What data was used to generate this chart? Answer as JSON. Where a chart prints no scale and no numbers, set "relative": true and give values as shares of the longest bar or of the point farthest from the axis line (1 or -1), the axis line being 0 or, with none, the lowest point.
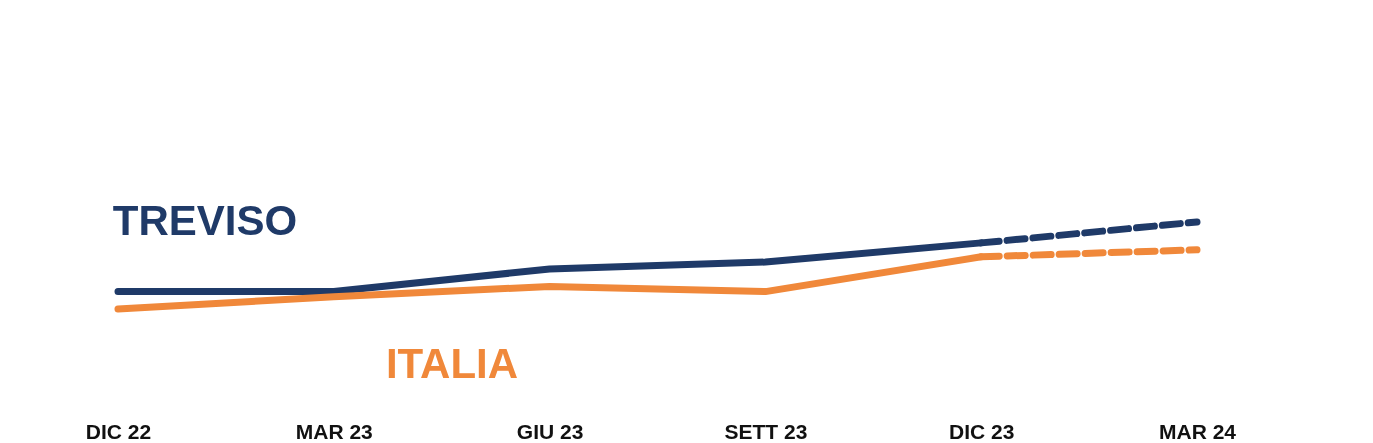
{
  "chart_data": {
    "type": "line",
    "relative": true,
    "legend": false,
    "categories": [
      "DIC 22",
      "MAR 23",
      "GIU 23",
      "SETT 23",
      "DIC 23",
      "MAR 24"
    ],
    "series": [
      {
        "name": "TREVISO",
        "color": "#1f3a68",
        "line_style": "solid",
        "values": [
          0.2,
          0.2,
          0.46,
          0.54,
          0.76,
          null
        ]
      },
      {
        "color": "#1f3a68",
        "line_style": "dashed",
        "values": [
          null,
          null,
          null,
          null,
          0.76,
          1.0
        ]
      },
      {
        "name": "ITALIA",
        "color": "#f0883a",
        "line_style": "solid",
        "values": [
          0,
          0.14,
          0.26,
          0.2,
          0.6,
          null
        ]
      },
      {
        "color": "#f0883a",
        "line_style": "dashed",
        "values": [
          null,
          null,
          null,
          null,
          0.6,
          0.68
        ]
      }
    ]
  }
}
